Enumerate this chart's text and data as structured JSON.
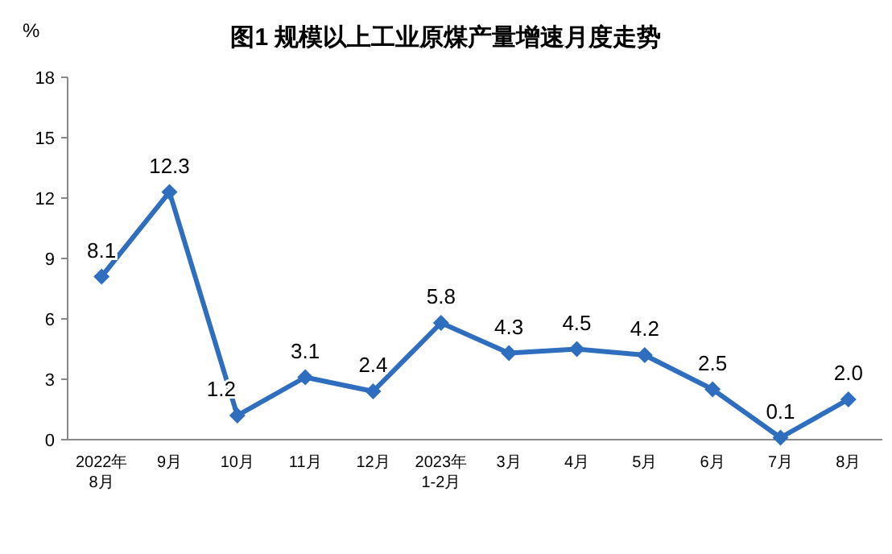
{
  "chart_data": {
    "type": "line",
    "title": "图1  规模以上工业原煤产量增速月度走势",
    "ylabel": "%",
    "categories": [
      "2022年\n8月",
      "9月",
      "10月",
      "11月",
      "12月",
      "2023年\n1-2月",
      "3月",
      "4月",
      "5月",
      "6月",
      "7月",
      "8月"
    ],
    "series": [
      {
        "color": "#2f6ebf",
        "values": [
          8.1,
          12.3,
          1.2,
          3.1,
          2.4,
          5.8,
          4.3,
          4.5,
          4.2,
          2.5,
          0.1,
          2.0
        ],
        "value_labels": [
          "8.1",
          "12.3",
          "1.2",
          "3.1",
          "2.4",
          "5.8",
          "4.3",
          "4.5",
          "4.2",
          "2.5",
          "0.1",
          "2.0"
        ]
      }
    ],
    "ylim": [
      0,
      18
    ],
    "yticks": [
      0,
      3,
      6,
      9,
      12,
      15,
      18
    ],
    "marker": "diamond",
    "line_style": "solid",
    "grid": false
  }
}
